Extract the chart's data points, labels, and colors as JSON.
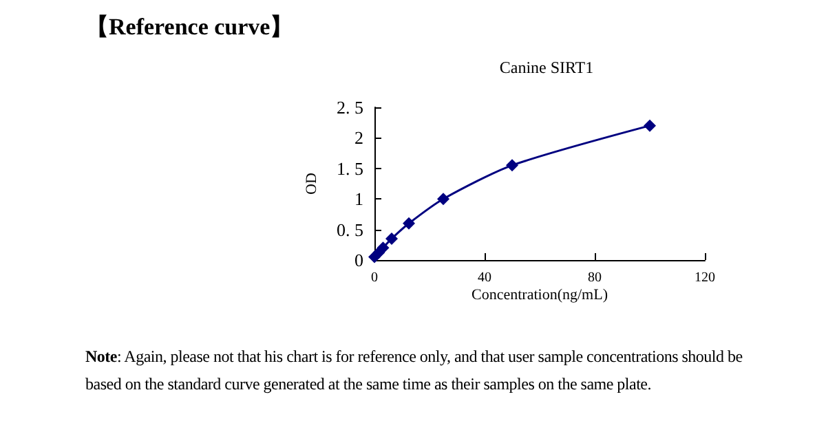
{
  "chart_data": {
    "type": "line",
    "title": "【Reference curve】",
    "subtitle": "Canine SIRT1",
    "xlabel": "Concentration(ng/mL)",
    "ylabel": "OD",
    "x": [
      0,
      1.56,
      3.13,
      6.25,
      12.5,
      25,
      50,
      100
    ],
    "series": [
      {
        "color": "#000080",
        "values": [
          0.05,
          0.12,
          0.2,
          0.35,
          0.6,
          1.0,
          1.55,
          2.2
        ]
      }
    ],
    "xlim": [
      0,
      120
    ],
    "xticks": [
      0,
      40,
      80,
      120
    ],
    "ylim": [
      0,
      2.5
    ],
    "yticks": [
      0,
      {
        "value": 0.5,
        "label": "0. 5"
      },
      1,
      {
        "value": 1.5,
        "label": "1. 5"
      },
      2,
      {
        "value": 2.5,
        "label": "2. 5"
      }
    ],
    "marker": "diamond",
    "line_style": "solid",
    "grid": false,
    "annotations": [
      "Note: Again, please not that his chart is for reference only, and that user sample concentrations should be based on the standard curve generated at the same time as their samples on the same plate."
    ]
  }
}
